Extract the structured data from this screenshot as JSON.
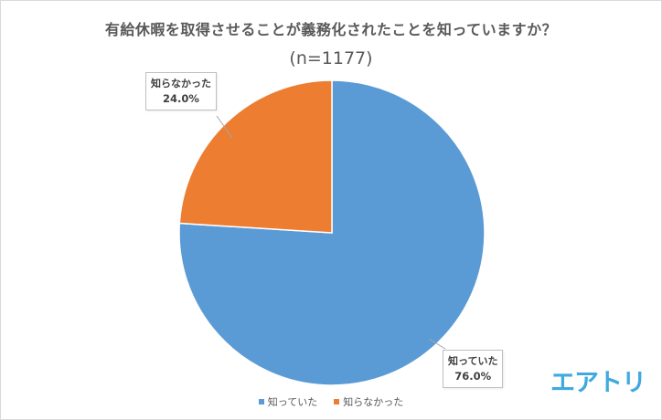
{
  "chart_data": {
    "type": "pie",
    "title": "有給休暇を取得させることが義務化されたことを知っていますか？",
    "subtitle": "(n=1177)",
    "slices": [
      {
        "label": "知っていた",
        "value": 76.0,
        "value_label": "76.0%",
        "color": "#5b9bd5"
      },
      {
        "label": "知らなかった",
        "value": 24.0,
        "value_label": "24.0%",
        "color": "#ed7d31"
      }
    ],
    "start_angle": "12 o'clock, clockwise",
    "legend": {
      "position": "bottom",
      "items": [
        "知っていた",
        "知らなかった"
      ]
    }
  },
  "logo": {
    "text": "エアトリ",
    "color": "#3fa9e0"
  }
}
